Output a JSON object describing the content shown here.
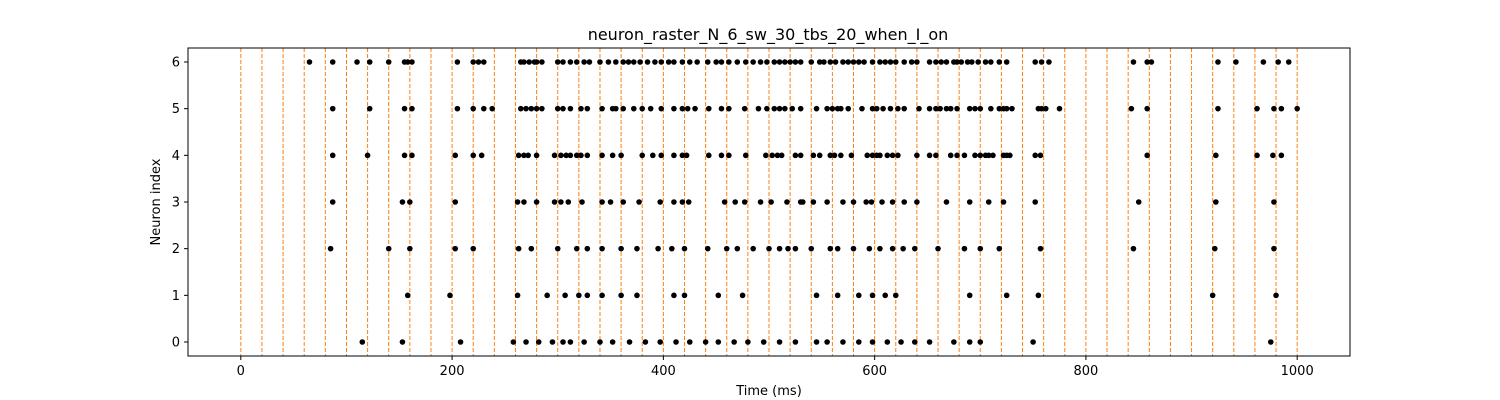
{
  "chart_data": {
    "type": "scatter",
    "title": "neuron_raster_N_6_sw_30_tbs_20_when_I_on",
    "xlabel": "Time (ms)",
    "ylabel": "Neuron index",
    "xlim": [
      -50,
      1050
    ],
    "ylim": [
      -0.3,
      6.3
    ],
    "xticks": [
      0,
      200,
      400,
      600,
      800,
      1000
    ],
    "yticks": [
      0,
      1,
      2,
      3,
      4,
      5,
      6
    ],
    "grid": false,
    "vlines": {
      "color": "#ff7f0e",
      "style": "dashed",
      "x": [
        0,
        20,
        40,
        60,
        80,
        100,
        120,
        140,
        160,
        180,
        200,
        220,
        240,
        260,
        280,
        300,
        320,
        340,
        360,
        380,
        400,
        420,
        440,
        460,
        480,
        500,
        520,
        540,
        560,
        580,
        600,
        620,
        640,
        660,
        680,
        700,
        720,
        740,
        760,
        780,
        800,
        820,
        840,
        860,
        880,
        900,
        920,
        940,
        960,
        980,
        1000
      ]
    },
    "marker_color": "#000000",
    "series": [
      {
        "neuron": 0,
        "x": [
          115,
          153,
          208,
          258,
          270,
          282,
          295,
          305,
          312,
          325,
          340,
          352,
          368,
          383,
          397,
          412,
          425,
          440,
          452,
          467,
          480,
          495,
          510,
          525,
          545,
          555,
          570,
          585,
          598,
          612,
          625,
          638,
          652,
          675,
          690,
          700,
          750,
          975
        ]
      },
      {
        "neuron": 1,
        "x": [
          158,
          198,
          262,
          290,
          307,
          320,
          328,
          342,
          360,
          375,
          410,
          420,
          452,
          475,
          545,
          565,
          585,
          598,
          610,
          620,
          690,
          725,
          755,
          920,
          980
        ]
      },
      {
        "neuron": 2,
        "x": [
          85,
          140,
          160,
          203,
          220,
          263,
          275,
          300,
          318,
          328,
          342,
          360,
          375,
          395,
          408,
          420,
          442,
          460,
          470,
          485,
          500,
          510,
          518,
          525,
          540,
          558,
          565,
          580,
          595,
          605,
          617,
          627,
          638,
          660,
          685,
          700,
          718,
          757,
          845,
          922,
          978
        ]
      },
      {
        "neuron": 3,
        "x": [
          87,
          153,
          160,
          203,
          262,
          268,
          280,
          297,
          303,
          310,
          323,
          342,
          350,
          362,
          377,
          397,
          410,
          418,
          424,
          458,
          468,
          477,
          492,
          502,
          517,
          530,
          532,
          542,
          555,
          570,
          580,
          592,
          597,
          607,
          617,
          628,
          640,
          668,
          690,
          708,
          722,
          752,
          850,
          923,
          978
        ]
      },
      {
        "neuron": 4,
        "x": [
          87,
          120,
          155,
          162,
          203,
          220,
          228,
          263,
          268,
          272,
          280,
          297,
          303,
          308,
          312,
          318,
          322,
          328,
          342,
          352,
          360,
          380,
          390,
          398,
          410,
          418,
          422,
          443,
          455,
          462,
          478,
          497,
          503,
          508,
          512,
          525,
          530,
          542,
          548,
          558,
          562,
          568,
          578,
          593,
          598,
          602,
          605,
          612,
          617,
          622,
          640,
          652,
          658,
          672,
          678,
          685,
          695,
          700,
          705,
          708,
          712,
          722,
          725,
          728,
          752,
          757,
          858,
          923,
          962,
          977,
          985
        ]
      },
      {
        "neuron": 5,
        "x": [
          87,
          122,
          155,
          162,
          205,
          220,
          230,
          238,
          265,
          270,
          275,
          280,
          285,
          300,
          305,
          312,
          322,
          328,
          342,
          352,
          355,
          362,
          372,
          380,
          388,
          398,
          410,
          418,
          423,
          430,
          443,
          455,
          462,
          477,
          490,
          498,
          505,
          510,
          515,
          522,
          530,
          545,
          555,
          560,
          565,
          568,
          575,
          588,
          598,
          602,
          608,
          615,
          622,
          628,
          642,
          652,
          658,
          662,
          668,
          672,
          678,
          690,
          695,
          700,
          710,
          718,
          722,
          725,
          730,
          755,
          758,
          762,
          775,
          843,
          858,
          925,
          962,
          978,
          985,
          1000
        ]
      },
      {
        "neuron": 6,
        "x": [
          65,
          87,
          110,
          122,
          140,
          155,
          158,
          162,
          205,
          220,
          225,
          230,
          265,
          268,
          273,
          278,
          280,
          285,
          300,
          305,
          312,
          318,
          325,
          330,
          340,
          348,
          355,
          362,
          367,
          372,
          378,
          385,
          392,
          398,
          405,
          410,
          418,
          425,
          432,
          442,
          450,
          455,
          462,
          470,
          478,
          485,
          492,
          498,
          505,
          510,
          515,
          520,
          525,
          530,
          540,
          548,
          552,
          558,
          563,
          570,
          575,
          580,
          585,
          590,
          598,
          605,
          610,
          615,
          620,
          628,
          635,
          640,
          652,
          658,
          663,
          668,
          675,
          678,
          682,
          688,
          692,
          698,
          705,
          710,
          718,
          725,
          752,
          758,
          765,
          845,
          858,
          862,
          925,
          942,
          968,
          982,
          992
        ]
      }
    ]
  }
}
